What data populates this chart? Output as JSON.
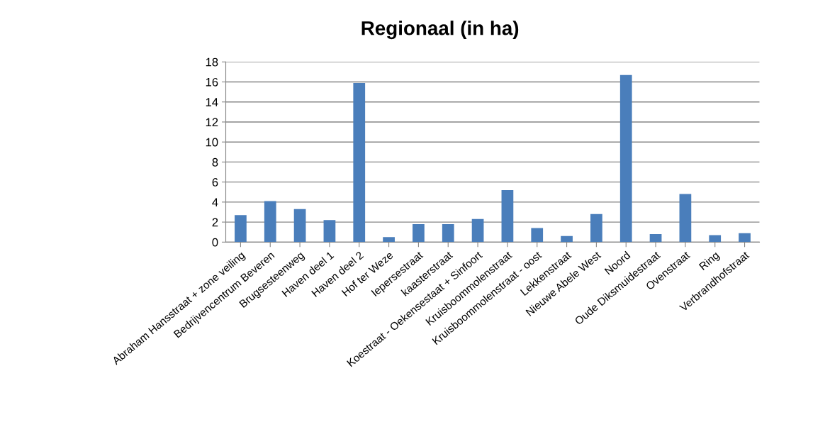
{
  "chart_data": {
    "type": "bar",
    "title": "Regionaal (in ha)",
    "categories": [
      "Abraham Hansstraat + zone veiling",
      "Bedrijvencentrum Beveren",
      "Brugsesteenweg",
      "Haven deel 1",
      "Haven deel 2",
      "Hof ter Weze",
      "Iepersestraat",
      "kaasterstraat",
      "Koestraat - Oekensestaat + Sinfoort",
      "Kruisboommolenstraat",
      "Kruisboommolenstraat - oost",
      "Lekkenstraat",
      "Nieuwe Abele West",
      "Noord",
      "Oude Diksmuidestraat",
      "Ovenstraat",
      "Ring",
      "Verbrandhofstraat"
    ],
    "values": [
      2.7,
      4.1,
      3.3,
      2.2,
      15.9,
      0.5,
      1.8,
      1.8,
      2.3,
      5.2,
      1.4,
      0.6,
      2.8,
      16.7,
      0.8,
      4.8,
      0.7,
      0.9
    ],
    "color": "#4a7ebb",
    "ylim": [
      0,
      18
    ],
    "yticks": [
      0,
      2,
      4,
      6,
      8,
      10,
      12,
      14,
      16,
      18
    ],
    "grid": "y"
  }
}
